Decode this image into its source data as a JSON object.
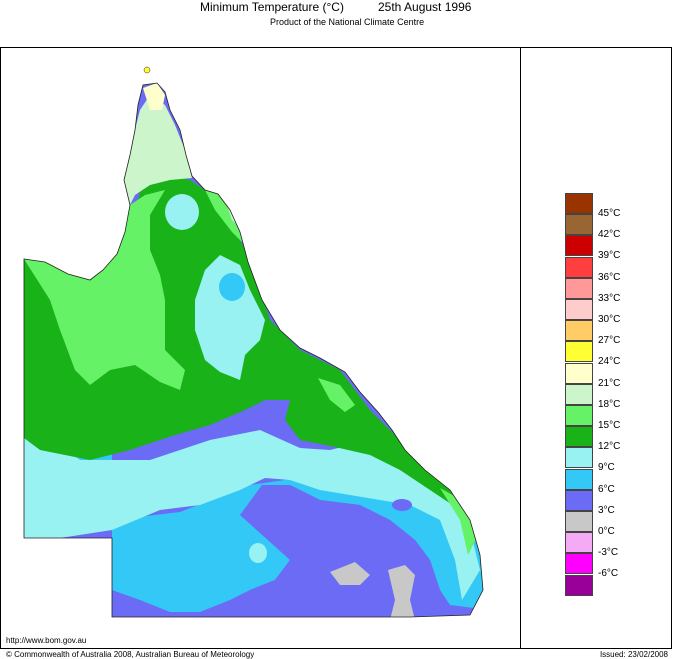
{
  "header": {
    "title": "Minimum Temperature (°C)",
    "date": "25th August 1996",
    "subtitle": "Product of the National Climate Centre"
  },
  "map": {
    "region": "Queensland",
    "bands": [
      {
        "name": "3°C to 6°C",
        "color": "#6b6bf5"
      },
      {
        "name": "6°C to 9°C",
        "color": "#33c8f5"
      },
      {
        "name": "9°C to 12°C",
        "color": "#99f2f2"
      },
      {
        "name": "12°C to 15°C",
        "color": "#19b219"
      },
      {
        "name": "15°C to 18°C",
        "color": "#66f266"
      },
      {
        "name": "18°C to 21°C",
        "color": "#ccf5cc"
      },
      {
        "name": "21°C to 24°C",
        "color": "#ffffcc"
      },
      {
        "name": "0°C to 3°C",
        "color": "#c8c8c8"
      }
    ]
  },
  "legend": {
    "items": [
      {
        "label": "45°C",
        "color": "#993300"
      },
      {
        "label": "42°C",
        "color": "#996633"
      },
      {
        "label": "39°C",
        "color": "#cc0000"
      },
      {
        "label": "36°C",
        "color": "#ff3f3f"
      },
      {
        "label": "33°C",
        "color": "#ff9999"
      },
      {
        "label": "30°C",
        "color": "#ffcccc"
      },
      {
        "label": "27°C",
        "color": "#ffcc66"
      },
      {
        "label": "24°C",
        "color": "#ffff33"
      },
      {
        "label": "21°C",
        "color": "#ffffcc"
      },
      {
        "label": "18°C",
        "color": "#ccf5cc"
      },
      {
        "label": "15°C",
        "color": "#66f266"
      },
      {
        "label": "12°C",
        "color": "#19b219"
      },
      {
        "label": "9°C",
        "color": "#99f2f2"
      },
      {
        "label": "6°C",
        "color": "#33c8f5"
      },
      {
        "label": "3°C",
        "color": "#6b6bf5"
      },
      {
        "label": "0°C",
        "color": "#c8c8c8"
      },
      {
        "label": "-3°C",
        "color": "#f5aaf5"
      },
      {
        "label": "-6°C",
        "color": "#ff00ff"
      },
      {
        "label": "",
        "color": "#990099"
      }
    ]
  },
  "footer": {
    "url": "http://www.bom.gov.au",
    "copyright": "© Commonwealth of Australia 2008, Australian Bureau of Meteorology",
    "issued": "Issued: 23/02/2008"
  }
}
